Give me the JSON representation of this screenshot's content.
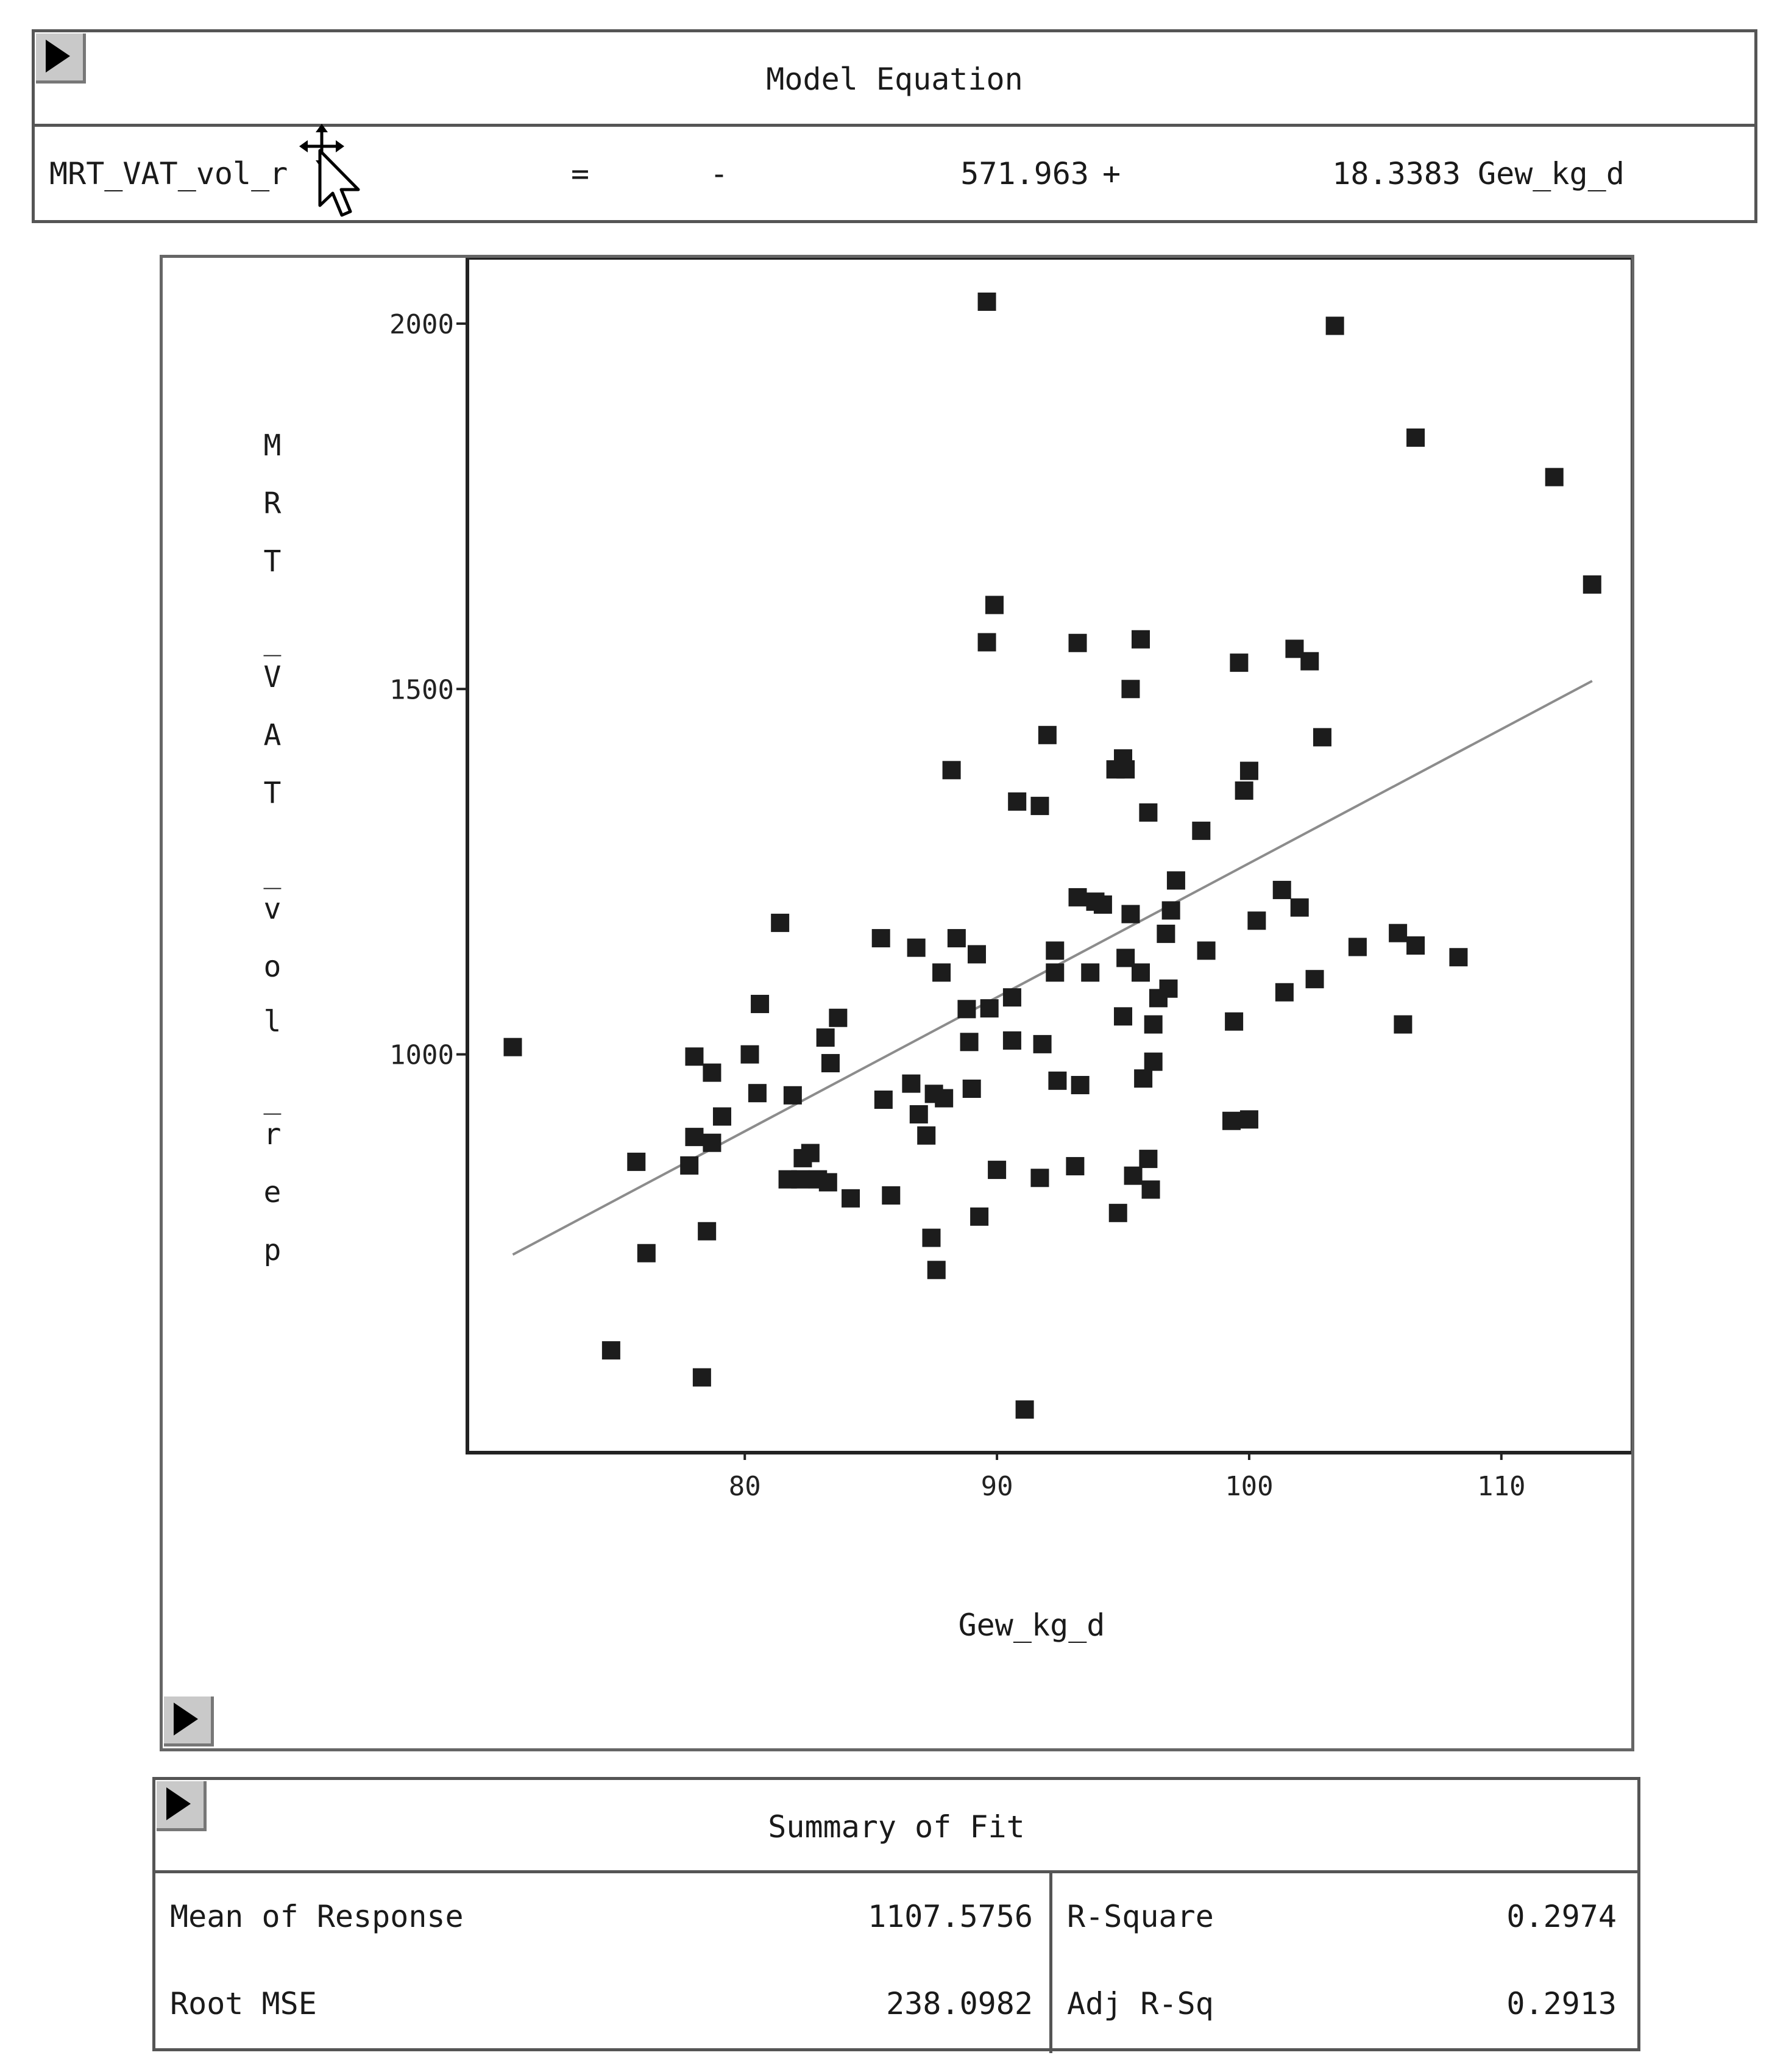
{
  "model_equation": {
    "title": "Model Equation",
    "response": "MRT_VAT_vol_r",
    "equals": "=",
    "sign": "-",
    "intercept": "571.963",
    "plus": "+",
    "slope": "18.3383",
    "predictor": "Gew_kg_d"
  },
  "summary_of_fit": {
    "title": "Summary of Fit",
    "rows": [
      {
        "label": "Mean of Response",
        "value": "1107.5756",
        "label2": "R-Square",
        "value2": "0.2974"
      },
      {
        "label": "Root MSE",
        "value": "238.0982",
        "label2": "Adj R-Sq",
        "value2": "0.2913"
      }
    ]
  },
  "icons": {
    "disclosure": "disclosure-triangle-icon",
    "cursor": "mouse-pointer-icon"
  },
  "chart_data": {
    "type": "scatter",
    "xlabel": "Gew_kg_d",
    "ylabel": "MRT_VAT_vol_rep",
    "xlim": [
      69,
      115.2
    ],
    "ylim": [
      455,
      2090
    ],
    "xticks": [
      80,
      90,
      100,
      110
    ],
    "yticks": [
      1000,
      1500,
      2000
    ],
    "grid": false,
    "fit_line": {
      "x": [
        70.8,
        113.6
      ],
      "y": [
        726,
        1511
      ]
    },
    "points": [
      [
        70.8,
        1010
      ],
      [
        74.7,
        595
      ],
      [
        75.7,
        853
      ],
      [
        76.1,
        728
      ],
      [
        77.8,
        848
      ],
      [
        78.0,
        997
      ],
      [
        78.0,
        887
      ],
      [
        78.3,
        558
      ],
      [
        78.5,
        758
      ],
      [
        78.7,
        975
      ],
      [
        78.7,
        879
      ],
      [
        79.1,
        915
      ],
      [
        80.2,
        1000
      ],
      [
        80.5,
        947
      ],
      [
        80.6,
        1069
      ],
      [
        81.4,
        1180
      ],
      [
        81.7,
        829
      ],
      [
        81.9,
        944
      ],
      [
        82.2,
        829
      ],
      [
        82.3,
        858
      ],
      [
        82.6,
        865
      ],
      [
        82.9,
        829
      ],
      [
        83.2,
        1023
      ],
      [
        83.3,
        825
      ],
      [
        83.4,
        988
      ],
      [
        83.7,
        1050
      ],
      [
        84.2,
        803
      ],
      [
        85.4,
        1159
      ],
      [
        85.5,
        938
      ],
      [
        85.8,
        807
      ],
      [
        86.6,
        960
      ],
      [
        86.8,
        1146
      ],
      [
        86.9,
        918
      ],
      [
        87.2,
        889
      ],
      [
        87.4,
        749
      ],
      [
        87.5,
        946
      ],
      [
        87.6,
        705
      ],
      [
        87.8,
        1112
      ],
      [
        87.9,
        940
      ],
      [
        88.2,
        1389
      ],
      [
        88.4,
        1159
      ],
      [
        88.8,
        1062
      ],
      [
        88.9,
        1017
      ],
      [
        89.0,
        953
      ],
      [
        89.2,
        1137
      ],
      [
        89.3,
        778
      ],
      [
        89.6,
        2030
      ],
      [
        89.6,
        1564
      ],
      [
        89.7,
        1063
      ],
      [
        89.9,
        1615
      ],
      [
        90.0,
        842
      ],
      [
        90.6,
        1078
      ],
      [
        90.6,
        1019
      ],
      [
        90.8,
        1346
      ],
      [
        91.1,
        514
      ],
      [
        91.7,
        1340
      ],
      [
        91.7,
        831
      ],
      [
        91.8,
        1014
      ],
      [
        92.0,
        1437
      ],
      [
        92.3,
        1142
      ],
      [
        92.3,
        1112
      ],
      [
        92.4,
        964
      ],
      [
        93.1,
        847
      ],
      [
        93.2,
        1563
      ],
      [
        93.2,
        1215
      ],
      [
        93.3,
        958
      ],
      [
        93.7,
        1112
      ],
      [
        93.9,
        1209
      ],
      [
        94.2,
        1205
      ],
      [
        94.7,
        1390
      ],
      [
        94.8,
        783
      ],
      [
        95.0,
        1405
      ],
      [
        95.0,
        1052
      ],
      [
        95.1,
        1132
      ],
      [
        95.1,
        1390
      ],
      [
        95.3,
        1500
      ],
      [
        95.3,
        1192
      ],
      [
        95.4,
        834
      ],
      [
        95.7,
        1568
      ],
      [
        95.7,
        1112
      ],
      [
        95.8,
        967
      ],
      [
        96.0,
        1331
      ],
      [
        96.0,
        857
      ],
      [
        96.1,
        815
      ],
      [
        96.2,
        1041
      ],
      [
        96.2,
        990
      ],
      [
        96.4,
        1077
      ],
      [
        96.7,
        1165
      ],
      [
        96.8,
        1090
      ],
      [
        96.9,
        1197
      ],
      [
        97.1,
        1238
      ],
      [
        98.1,
        1306
      ],
      [
        98.3,
        1142
      ],
      [
        99.3,
        909
      ],
      [
        99.4,
        1045
      ],
      [
        99.6,
        1536
      ],
      [
        99.8,
        1361
      ],
      [
        100.0,
        911
      ],
      [
        100.0,
        1388
      ],
      [
        100.3,
        1183
      ],
      [
        101.3,
        1225
      ],
      [
        101.4,
        1085
      ],
      [
        101.8,
        1555
      ],
      [
        102.0,
        1201
      ],
      [
        102.4,
        1538
      ],
      [
        102.6,
        1103
      ],
      [
        102.9,
        1434
      ],
      [
        103.4,
        1997
      ],
      [
        104.3,
        1147
      ],
      [
        105.9,
        1166
      ],
      [
        106.1,
        1041
      ],
      [
        106.6,
        1844
      ],
      [
        106.6,
        1149
      ],
      [
        108.3,
        1133
      ],
      [
        112.1,
        1790
      ],
      [
        113.6,
        1643
      ]
    ]
  }
}
